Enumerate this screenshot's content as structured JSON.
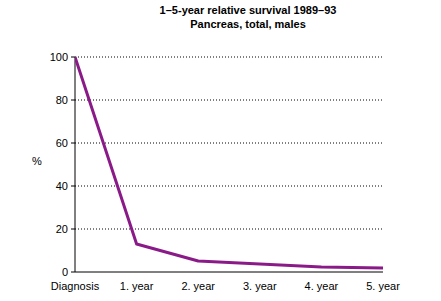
{
  "chart_data": {
    "type": "line",
    "title": "1–5-year relative survival 1989–93",
    "subtitle": "Pancreas, total, males",
    "y_label": "%",
    "categories": [
      "Diagnosis",
      "1. year",
      "2. year",
      "3. year",
      "4. year",
      "5. year"
    ],
    "values": [
      100,
      13,
      5.1,
      3.7,
      2.3,
      1.9
    ],
    "color": "#8b1a89",
    "ylim": [
      0,
      100
    ],
    "yticks": [
      0,
      20,
      40,
      60,
      80,
      100
    ],
    "grid": true
  }
}
